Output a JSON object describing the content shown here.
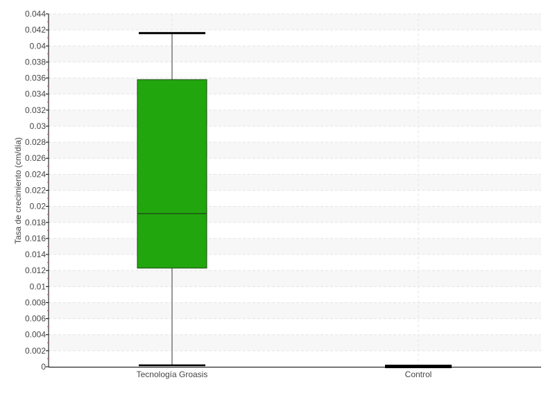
{
  "chart_data": {
    "type": "boxplot",
    "title": "",
    "xlabel": "",
    "ylabel": "Tasa de crecimiento (cm/día)",
    "ylim": [
      0,
      0.044
    ],
    "ytick_step": 0.002,
    "yticks": [
      "0",
      "0.002",
      "0.004",
      "0.006",
      "0.008",
      "0.01",
      "0.012",
      "0.014",
      "0.016",
      "0.018",
      "0.02",
      "0.022",
      "0.024",
      "0.026",
      "0.028",
      "0.03",
      "0.032",
      "0.034",
      "0.036",
      "0.038",
      "0.04",
      "0.042",
      "0.044"
    ],
    "grid": true,
    "categories": [
      "Tecnología Groasis",
      "Control"
    ],
    "boxes": [
      {
        "category": "Tecnología Groasis",
        "min": 0.0001,
        "q1": 0.0123,
        "median": 0.0191,
        "q3": 0.0358,
        "max": 0.0416,
        "color": "#22a60e"
      },
      {
        "category": "Control",
        "min": 0,
        "q1": 0,
        "median": 0,
        "q3": 0,
        "max": 0,
        "color": "#22a60e"
      }
    ]
  }
}
